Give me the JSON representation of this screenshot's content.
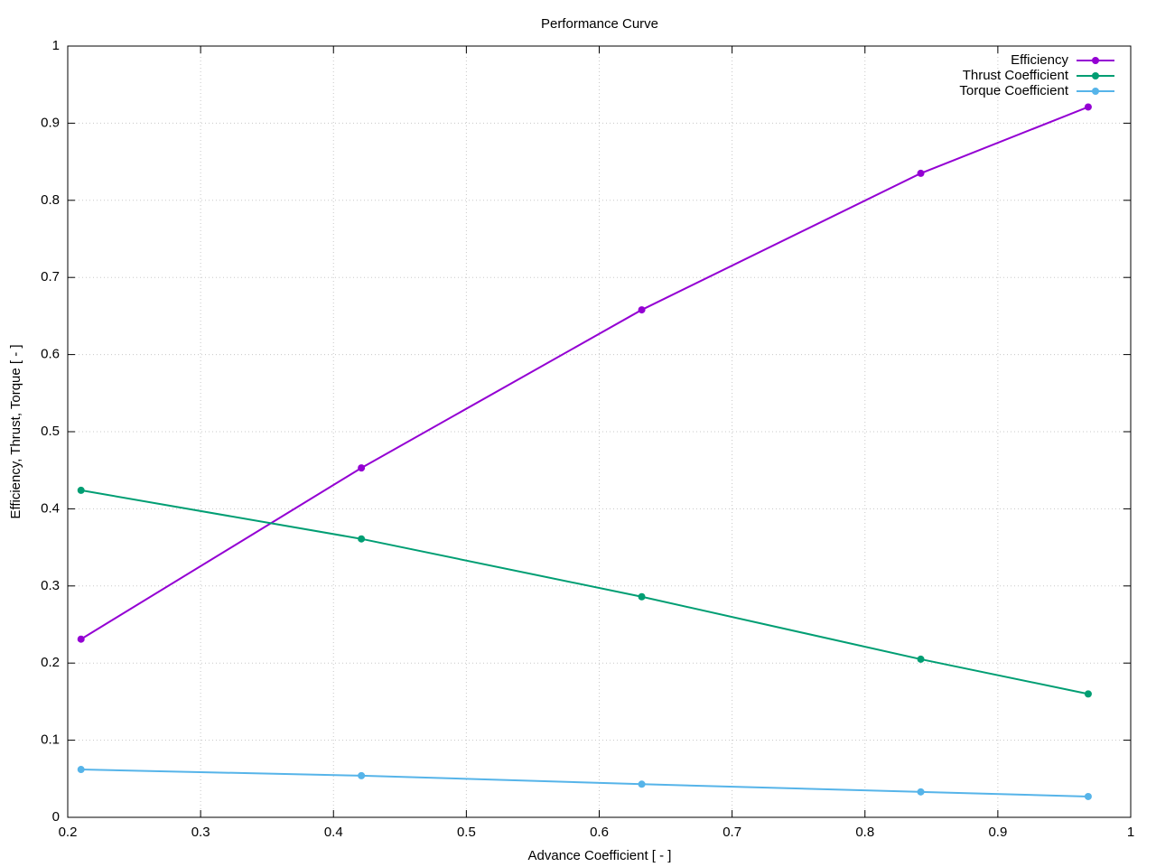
{
  "chart_data": {
    "type": "line",
    "title": "Performance Curve",
    "x_label": "Advance Coefficient [ - ]",
    "y_label": "Efficiency, Thrust, Torque [ - ]",
    "x": [
      0.21,
      0.421,
      0.632,
      0.842,
      0.968
    ],
    "series": [
      {
        "name": "Efficiency",
        "color": "#9400d3",
        "values": [
          0.231,
          0.453,
          0.658,
          0.835,
          0.921
        ]
      },
      {
        "name": "Thrust Coefficient",
        "color": "#009e73",
        "values": [
          0.424,
          0.361,
          0.286,
          0.205,
          0.16
        ]
      },
      {
        "name": "Torque Coefficient",
        "color": "#56b4e9",
        "values": [
          0.062,
          0.054,
          0.043,
          0.033,
          0.027
        ]
      }
    ],
    "xlim": [
      0.2,
      1
    ],
    "xticks": [
      0.2,
      0.3,
      0.4,
      0.5,
      0.6,
      0.7,
      0.8,
      0.9,
      1
    ],
    "ylim": [
      0,
      1
    ],
    "yticks": [
      0,
      0.1,
      0.2,
      0.3,
      0.4,
      0.5,
      0.6,
      0.7,
      0.8,
      0.9,
      1
    ],
    "grid": true,
    "legend": "top-right"
  }
}
